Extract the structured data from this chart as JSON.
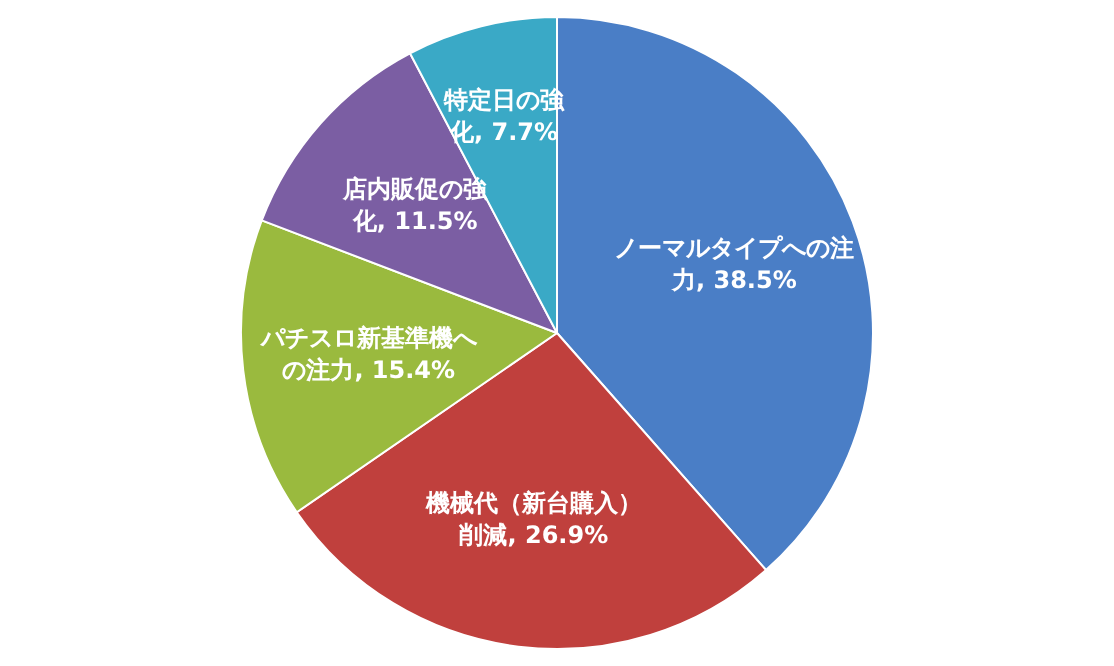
{
  "chart_data": {
    "type": "pie",
    "categories": [
      "ノーマルタイプへの注力",
      "機械代（新台購入）削減",
      "パチスロ新基準機への注力",
      "店内販促の強化",
      "特定日の強化"
    ],
    "values": [
      38.5,
      26.9,
      15.4,
      11.5,
      7.7
    ],
    "colors": [
      "#4a7ec6",
      "#c0403d",
      "#9aba3e",
      "#7b5ea3",
      "#3aa9c6"
    ],
    "value_labels": [
      ", 38.5%",
      ", 26.9%",
      ", 15.4%",
      ", 11.5%",
      ", 7.7%"
    ],
    "legend": false
  }
}
